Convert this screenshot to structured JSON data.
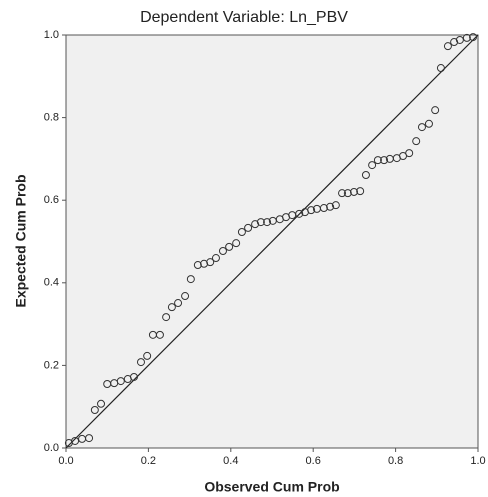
{
  "chart_data": {
    "type": "scatter",
    "title": "Dependent Variable: Ln_PBV",
    "x_label": "Observed Cum Prob",
    "y_label": "Expected Cum Prob",
    "x": [
      0.007,
      0.022,
      0.039,
      0.056,
      0.07,
      0.085,
      0.1,
      0.117,
      0.133,
      0.15,
      0.165,
      0.182,
      0.197,
      0.211,
      0.228,
      0.243,
      0.257,
      0.272,
      0.289,
      0.303,
      0.32,
      0.335,
      0.35,
      0.364,
      0.381,
      0.396,
      0.413,
      0.427,
      0.442,
      0.459,
      0.473,
      0.488,
      0.502,
      0.519,
      0.534,
      0.549,
      0.566,
      0.58,
      0.595,
      0.609,
      0.626,
      0.641,
      0.655,
      0.67,
      0.684,
      0.699,
      0.714,
      0.728,
      0.743,
      0.757,
      0.772,
      0.786,
      0.803,
      0.818,
      0.833,
      0.85,
      0.864,
      0.881,
      0.896,
      0.91,
      0.927,
      0.942,
      0.956,
      0.973,
      0.988
    ],
    "values": [
      0.012,
      0.017,
      0.022,
      0.024,
      0.092,
      0.107,
      0.155,
      0.157,
      0.162,
      0.167,
      0.172,
      0.208,
      0.223,
      0.274,
      0.274,
      0.317,
      0.341,
      0.351,
      0.368,
      0.409,
      0.443,
      0.446,
      0.45,
      0.46,
      0.477,
      0.487,
      0.496,
      0.523,
      0.533,
      0.542,
      0.547,
      0.547,
      0.55,
      0.554,
      0.559,
      0.564,
      0.567,
      0.571,
      0.576,
      0.579,
      0.581,
      0.584,
      0.588,
      0.617,
      0.617,
      0.62,
      0.622,
      0.661,
      0.685,
      0.697,
      0.697,
      0.7,
      0.702,
      0.707,
      0.714,
      0.743,
      0.777,
      0.785,
      0.818,
      0.92,
      0.973,
      0.983,
      0.988,
      0.993,
      0.995
    ],
    "color": "#333333",
    "reference_line": true,
    "xlim": [
      0,
      1
    ],
    "ylim": [
      0,
      1
    ],
    "xticks": [
      {
        "value": 0,
        "label": "0.0"
      },
      0.2,
      0.4,
      0.6,
      0.8,
      {
        "value": 1,
        "label": "1.0"
      }
    ],
    "yticks": [
      {
        "value": 0,
        "label": "0.0"
      },
      0.2,
      0.4,
      0.6,
      0.8,
      {
        "value": 1,
        "label": "1.0"
      }
    ]
  }
}
